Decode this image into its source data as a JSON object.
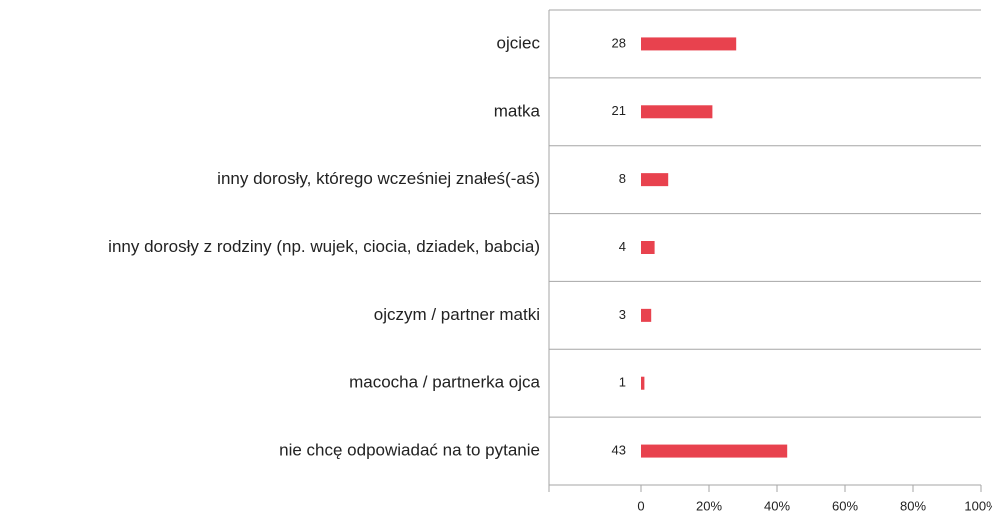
{
  "chart_data": {
    "type": "bar",
    "orientation": "horizontal",
    "categories": [
      "ojciec",
      "matka",
      "inny dorosły, którego wcześniej znałeś(-aś)",
      "inny dorosły z rodziny (np. wujek, ciocia, dziadek, babcia)",
      "ojczym / partner matki",
      "macocha / partnerka ojca",
      "nie chcę odpowiadać na to pytanie"
    ],
    "values": [
      28,
      21,
      8,
      4,
      3,
      1,
      43
    ],
    "color": "#e8424e",
    "xlim": [
      0,
      100
    ],
    "xticks": [
      0,
      {
        "value": 20,
        "label": "20%"
      },
      {
        "value": 40,
        "label": "40%"
      },
      {
        "value": 60,
        "label": "60%"
      },
      {
        "value": 80,
        "label": "80%"
      },
      {
        "value": 100,
        "label": "100%"
      }
    ]
  }
}
